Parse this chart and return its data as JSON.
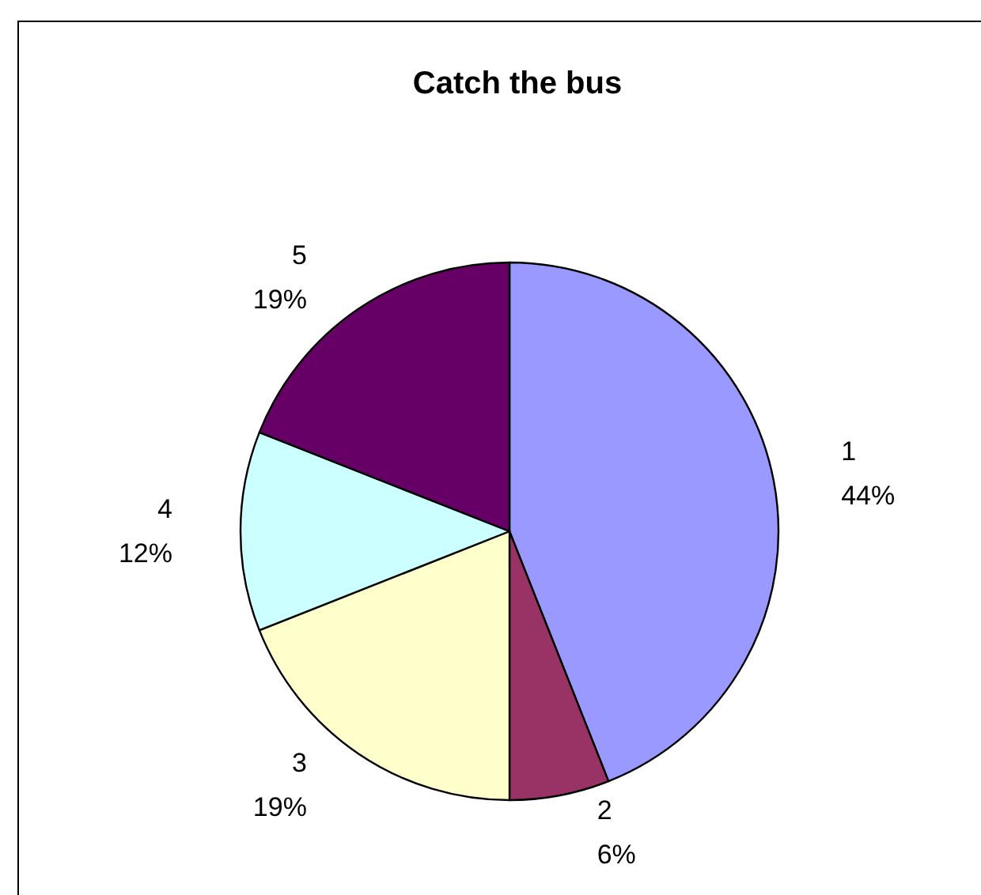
{
  "chart_data": {
    "type": "pie",
    "title": "Catch the bus",
    "categories": [
      "1",
      "2",
      "3",
      "4",
      "5"
    ],
    "values": [
      44,
      6,
      19,
      12,
      19
    ],
    "colors": [
      "#9999ff",
      "#993366",
      "#ffffcc",
      "#ccffff",
      "#660066"
    ],
    "value_labels": [
      "44%",
      "6%",
      "19%",
      "12%",
      "19%"
    ]
  }
}
